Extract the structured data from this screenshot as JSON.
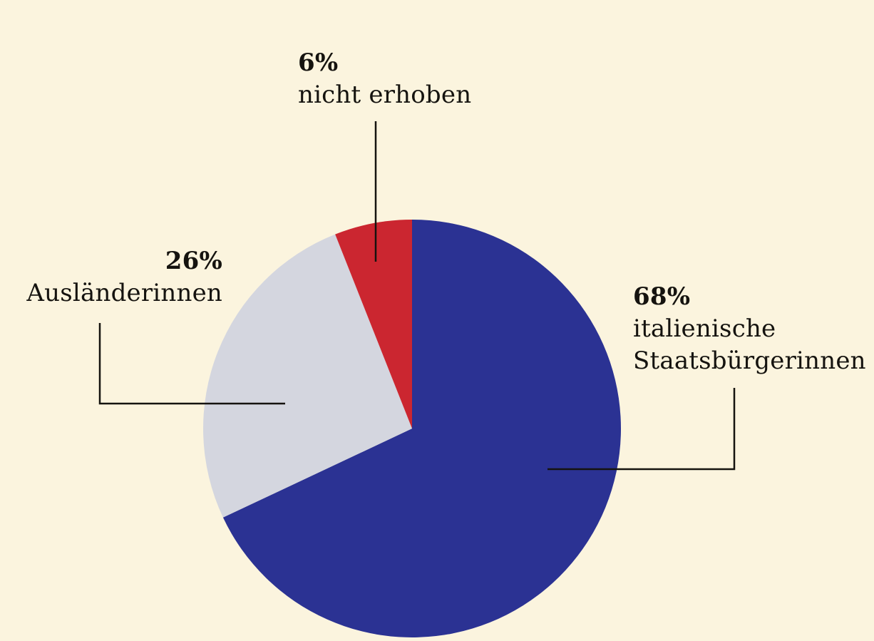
{
  "chart_data": {
    "type": "pie",
    "title": "",
    "background": "#FBF4DE",
    "start_angle_deg": 0,
    "direction": "clockwise",
    "legend_position": "none",
    "segments": [
      {
        "label": "italienische Staatsbürgerinnen",
        "pct_label": "68%",
        "value": 68,
        "color": "#2B3293",
        "name_lines": [
          "italienische",
          "Staatsbürgerinnen"
        ]
      },
      {
        "label": "Ausländerinnen",
        "pct_label": "26%",
        "value": 26,
        "color": "#D4D6DF",
        "name_lines": [
          "Ausländerinnen"
        ]
      },
      {
        "label": "nicht erhoben",
        "pct_label": "6%",
        "value": 6,
        "color": "#CB2630",
        "name_lines": [
          "nicht erhoben"
        ]
      }
    ]
  }
}
